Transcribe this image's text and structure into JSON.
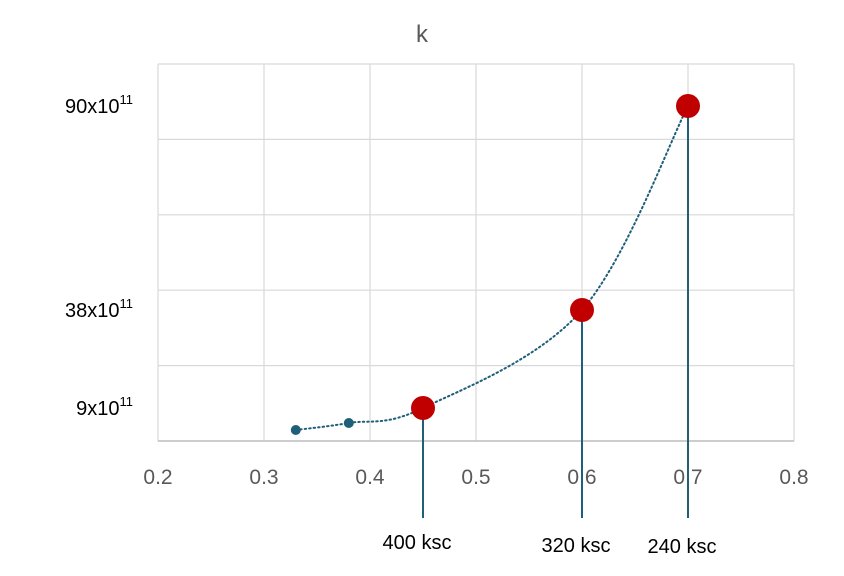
{
  "chart_data": {
    "type": "scatter",
    "title": "k",
    "xlim": [
      0.2,
      0.8
    ],
    "x_ticks": [
      "0.2",
      "0.3",
      "0.4",
      "0.5",
      "0.6",
      "0.7",
      "0.8"
    ],
    "grid": true,
    "y_labels": [
      {
        "base": "90x10",
        "exp": "11"
      },
      {
        "base": "38x10",
        "exp": "11"
      },
      {
        "base": "9x10",
        "exp": "11"
      }
    ],
    "series": [
      {
        "points": [
          {
            "x": 0.33
          },
          {
            "x": 0.38
          },
          {
            "x": 0.45,
            "y_label_index": 2,
            "highlight": true,
            "label": "400 ksc"
          },
          {
            "x": 0.6,
            "y_label_index": 1,
            "highlight": true,
            "label": "320 ksc"
          },
          {
            "x": 0.7,
            "y_label_index": 0,
            "highlight": true,
            "label": "240 ksc"
          }
        ],
        "trendline": "dotted exponential",
        "marker_color": "#1f5f7a",
        "highlight_color": "#c00000"
      }
    ],
    "colors": {
      "series": "#1f5f7a",
      "highlight": "#c00000",
      "grid": "#d9d9d9",
      "tick_text": "#595959"
    }
  }
}
